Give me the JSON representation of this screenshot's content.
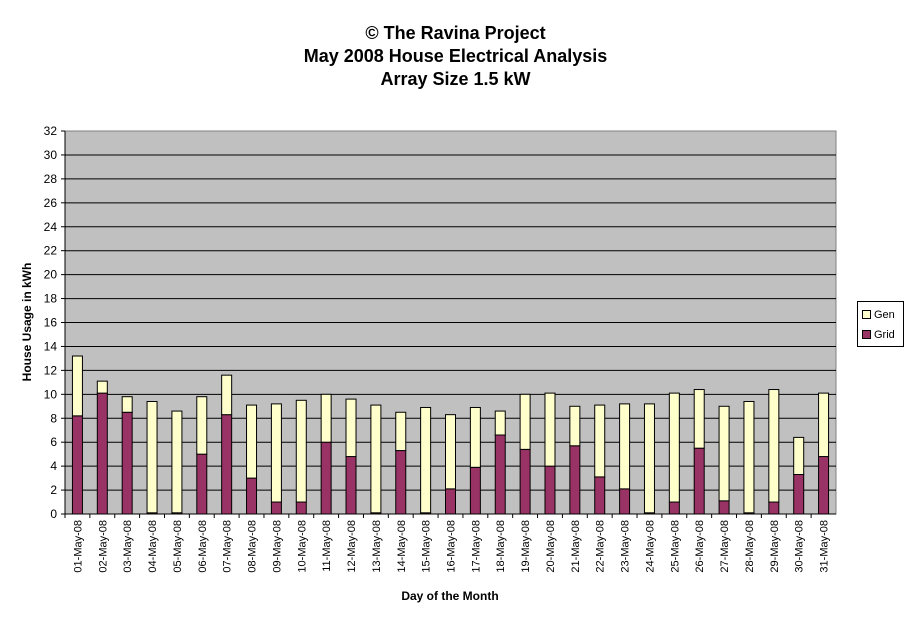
{
  "titles": {
    "line1": "© The Ravina Project",
    "line2": "May 2008 House Electrical Analysis",
    "line3": "Array Size 1.5 kW"
  },
  "chart_data": {
    "type": "bar",
    "stacked": true,
    "xlabel": "Day of the Month",
    "ylabel": "House Usage in kWh",
    "ylim": [
      0,
      32
    ],
    "ytick_step": 2,
    "grid": true,
    "legend_position": "right",
    "categories": [
      "01-May-08",
      "02-May-08",
      "03-May-08",
      "04-May-08",
      "05-May-08",
      "06-May-08",
      "07-May-08",
      "08-May-08",
      "09-May-08",
      "10-May-08",
      "11-May-08",
      "12-May-08",
      "13-May-08",
      "14-May-08",
      "15-May-08",
      "16-May-08",
      "17-May-08",
      "18-May-08",
      "19-May-08",
      "20-May-08",
      "21-May-08",
      "22-May-08",
      "23-May-08",
      "24-May-08",
      "25-May-08",
      "26-May-08",
      "27-May-08",
      "28-May-08",
      "29-May-08",
      "30-May-08",
      "31-May-08"
    ],
    "series": [
      {
        "name": "Grid",
        "color": "#993366",
        "values": [
          8.2,
          10.1,
          8.5,
          0.1,
          0.1,
          5.0,
          8.3,
          3.0,
          1.0,
          1.0,
          6.0,
          4.8,
          0.1,
          5.3,
          0.1,
          2.1,
          3.9,
          6.6,
          5.4,
          4.0,
          5.7,
          3.1,
          2.1,
          0.1,
          1.0,
          5.5,
          1.1,
          0.1,
          1.0,
          3.3,
          4.8
        ]
      },
      {
        "name": "Gen",
        "color": "#FFFFCC",
        "values": [
          5.0,
          1.0,
          1.3,
          9.3,
          8.5,
          4.8,
          3.3,
          6.1,
          8.2,
          8.5,
          4.0,
          4.8,
          9.0,
          3.2,
          8.8,
          6.2,
          5.0,
          2.0,
          4.6,
          6.1,
          3.3,
          6.0,
          7.1,
          9.1,
          9.1,
          4.9,
          7.9,
          9.3,
          9.4,
          3.1,
          5.3
        ]
      }
    ],
    "colors": {
      "plot_background": "#C0C0C0",
      "gridline": "#000000"
    }
  }
}
